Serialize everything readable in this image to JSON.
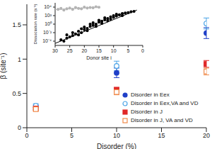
{
  "chart_data": [
    {
      "type": "scatter",
      "x_label": "Disorder (%)",
      "y_label": "β (site⁻¹)",
      "x": [
        1,
        10,
        20
      ],
      "xlim": [
        0,
        20
      ],
      "xticks": [
        0,
        5,
        10,
        15,
        20
      ],
      "ylim": [
        0,
        1.8
      ],
      "yticks": [
        0,
        0.5,
        1,
        1.5
      ],
      "legend": "lower right",
      "series": [
        {
          "name": "Disorder in Eex",
          "color": "#1f3fc8",
          "marker": "circle",
          "values": [
            0.3,
            0.8,
            1.38
          ],
          "errors": [
            0.03,
            0.07,
            0.08
          ]
        },
        {
          "name": "Disorder in Eex,VA and VD",
          "color": "#4aa3e6",
          "marker": "circle_open",
          "values": [
            0.32,
            0.9,
            1.52
          ],
          "errors": [
            0.03,
            0.07,
            0.08
          ]
        },
        {
          "name": "Disorder in J",
          "color": "#e02828",
          "marker": "square",
          "values": [
            0.28,
            0.55,
            0.93
          ],
          "errors": [
            0.02,
            0.04,
            0.05
          ]
        },
        {
          "name": "Disorder in J, VA and VD",
          "color": "#f08a4a",
          "marker": "square_open",
          "values": [
            0.27,
            0.52,
            0.82
          ],
          "errors": [
            0.02,
            0.04,
            0.05
          ]
        }
      ]
    },
    {
      "type": "scatter",
      "x_label": "Donor site i",
      "y_label": "Dissociation rate (s⁻¹)",
      "xlim": [
        30,
        0
      ],
      "xticks": [
        30,
        25,
        20,
        15,
        10,
        5,
        0
      ],
      "log": "y",
      "ylim": [
        1e-05,
        100000
      ],
      "yticks": [
        {
          "value": 0.0001,
          "label": "10⁻⁴"
        },
        {
          "value": 0.01,
          "label": "10⁻²"
        },
        {
          "value": 1,
          "label": "10⁰"
        },
        {
          "value": 100,
          "label": "10²"
        },
        {
          "value": 10000,
          "label": "10⁴"
        }
      ],
      "series": [
        {
          "color": "#000000",
          "marker": "circle",
          "x": [
            28,
            27,
            26,
            26,
            25,
            24,
            24,
            23,
            22,
            22,
            21,
            21,
            20,
            20,
            19,
            19,
            18,
            18,
            17,
            17,
            16,
            16,
            15,
            15,
            14,
            14,
            13,
            13,
            12,
            12,
            11,
            11,
            10,
            10,
            9,
            9,
            8,
            7,
            7,
            6,
            5,
            4,
            3
          ],
          "values": [
            0.0002,
            0.0001,
            0.0005,
            0.003,
            0.001,
            0.002,
            0.01,
            0.005,
            0.02,
            0.003,
            0.01,
            0.08,
            0.05,
            0.2,
            0.1,
            0.03,
            0.3,
            1,
            0.5,
            2,
            1,
            0.3,
            3,
            8,
            5,
            1.5,
            10,
            30,
            20,
            6,
            50,
            15,
            40,
            100,
            80,
            200,
            150,
            300,
            100,
            400,
            500,
            800,
            1000
          ]
        },
        {
          "color": "#b4b4b4",
          "marker": "circle",
          "x": [
            29,
            28,
            27,
            26,
            25,
            24,
            23,
            22,
            21,
            20,
            19,
            18,
            17,
            16,
            15
          ],
          "values": [
            3000,
            5000,
            2000,
            4000,
            6000,
            3000,
            8000,
            5000,
            4000,
            10000,
            6000,
            8000,
            7000,
            12000,
            9000
          ]
        },
        {
          "type": "line",
          "color": "#000000",
          "x": [
            30,
            2
          ],
          "values": [
            3e-05,
            2000
          ]
        },
        {
          "type": "line",
          "color": "#b4b4b4",
          "x": [
            30,
            15
          ],
          "values": [
            2500,
            10000
          ]
        }
      ]
    }
  ]
}
